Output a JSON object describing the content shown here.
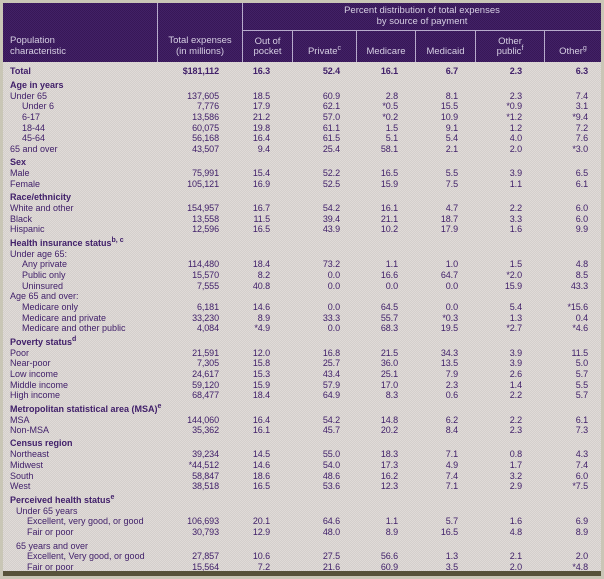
{
  "table": {
    "banner": [
      "Percent distribution of total expenses",
      "by source of payment"
    ],
    "col_headers": {
      "population": "Population characteristic",
      "total_expenses": "Total expenses (in millions)",
      "payment": [
        {
          "label": "Out of pocket",
          "sup": ""
        },
        {
          "label": "Private",
          "sup": "c"
        },
        {
          "label": "Medicare",
          "sup": ""
        },
        {
          "label": "Medicaid",
          "sup": ""
        },
        {
          "label": "Other public",
          "sup": "f"
        },
        {
          "label": "Other",
          "sup": "g"
        }
      ]
    },
    "rows": [
      {
        "t": "total",
        "label": "Total",
        "values": [
          "$181,112",
          "16.3",
          "52.4",
          "16.1",
          "6.7",
          "2.3",
          "6.3"
        ]
      },
      {
        "t": "section",
        "label": "Age in years"
      },
      {
        "t": "data",
        "i": 0,
        "label": "Under 65",
        "values": [
          "137,605",
          "18.5",
          "60.9",
          "2.8",
          "8.1",
          "2.3",
          "7.4"
        ]
      },
      {
        "t": "data",
        "i": 2,
        "label": "Under 6",
        "values": [
          "7,776",
          "17.9",
          "62.1",
          "*0.5",
          "15.5",
          "*0.9",
          "3.1"
        ]
      },
      {
        "t": "data",
        "i": 2,
        "label": "6-17",
        "values": [
          "13,586",
          "21.2",
          "57.0",
          "*0.2",
          "10.9",
          "*1.2",
          "*9.4"
        ]
      },
      {
        "t": "data",
        "i": 2,
        "label": "18-44",
        "values": [
          "60,075",
          "19.8",
          "61.1",
          "1.5",
          "9.1",
          "1.2",
          "7.2"
        ]
      },
      {
        "t": "data",
        "i": 2,
        "label": "45-64",
        "values": [
          "56,168",
          "16.4",
          "61.5",
          "5.1",
          "5.4",
          "4.0",
          "7.6"
        ]
      },
      {
        "t": "data",
        "i": 0,
        "label": "65 and over",
        "values": [
          "43,507",
          "9.4",
          "25.4",
          "58.1",
          "2.1",
          "2.0",
          "*3.0"
        ]
      },
      {
        "t": "section",
        "label": "Sex"
      },
      {
        "t": "data",
        "i": 0,
        "label": "Male",
        "values": [
          "75,991",
          "15.4",
          "52.2",
          "16.5",
          "5.5",
          "3.9",
          "6.5"
        ]
      },
      {
        "t": "data",
        "i": 0,
        "label": "Female",
        "values": [
          "105,121",
          "16.9",
          "52.5",
          "15.9",
          "7.5",
          "1.1",
          "6.1"
        ]
      },
      {
        "t": "section",
        "label": "Race/ethnicity"
      },
      {
        "t": "data",
        "i": 0,
        "label": "White and other",
        "values": [
          "154,957",
          "16.7",
          "54.2",
          "16.1",
          "4.7",
          "2.2",
          "6.0"
        ]
      },
      {
        "t": "data",
        "i": 0,
        "label": "Black",
        "values": [
          "13,558",
          "11.5",
          "39.4",
          "21.1",
          "18.7",
          "3.3",
          "6.0"
        ]
      },
      {
        "t": "data",
        "i": 0,
        "label": "Hispanic",
        "values": [
          "12,596",
          "16.5",
          "43.9",
          "10.2",
          "17.9",
          "1.6",
          "9.9"
        ]
      },
      {
        "t": "section",
        "label": "Health insurance status",
        "sup": "b, c"
      },
      {
        "t": "subheader",
        "i": 0,
        "label": "Under age 65:"
      },
      {
        "t": "data",
        "i": 2,
        "label": "Any private",
        "values": [
          "114,480",
          "18.4",
          "73.2",
          "1.1",
          "1.0",
          "1.5",
          "4.8"
        ]
      },
      {
        "t": "data",
        "i": 2,
        "label": "Public only",
        "values": [
          "15,570",
          "8.2",
          "0.0",
          "16.6",
          "64.7",
          "*2.0",
          "8.5"
        ]
      },
      {
        "t": "data",
        "i": 2,
        "label": "Uninsured",
        "values": [
          "7,555",
          "40.8",
          "0.0",
          "0.0",
          "0.0",
          "15.9",
          "43.3"
        ]
      },
      {
        "t": "subheader",
        "i": 0,
        "label": "Age 65 and over:"
      },
      {
        "t": "data",
        "i": 2,
        "label": "Medicare only",
        "values": [
          "6,181",
          "14.6",
          "0.0",
          "64.5",
          "0.0",
          "5.4",
          "*15.6"
        ]
      },
      {
        "t": "data",
        "i": 2,
        "label": "Medicare and private",
        "values": [
          "33,230",
          "8.9",
          "33.3",
          "55.7",
          "*0.3",
          "1.3",
          "0.4"
        ]
      },
      {
        "t": "data",
        "i": 2,
        "label": "Medicare and other public",
        "values": [
          "4,084",
          "*4.9",
          "0.0",
          "68.3",
          "19.5",
          "*2.7",
          "*4.6"
        ]
      },
      {
        "t": "section",
        "label": "Poverty status",
        "sup": "d"
      },
      {
        "t": "data",
        "i": 0,
        "label": "Poor",
        "values": [
          "21,591",
          "12.0",
          "16.8",
          "21.5",
          "34.3",
          "3.9",
          "11.5"
        ]
      },
      {
        "t": "data",
        "i": 0,
        "label": "Near-poor",
        "values": [
          "7,305",
          "15.8",
          "25.7",
          "36.0",
          "13.5",
          "3.9",
          "5.0"
        ]
      },
      {
        "t": "data",
        "i": 0,
        "label": "Low income",
        "values": [
          "24,617",
          "15.3",
          "43.4",
          "25.1",
          "7.9",
          "2.6",
          "5.7"
        ]
      },
      {
        "t": "data",
        "i": 0,
        "label": "Middle income",
        "values": [
          "59,120",
          "15.9",
          "57.9",
          "17.0",
          "2.3",
          "1.4",
          "5.5"
        ]
      },
      {
        "t": "data",
        "i": 0,
        "label": "High income",
        "values": [
          "68,477",
          "18.4",
          "64.9",
          "8.3",
          "0.6",
          "2.2",
          "5.7"
        ]
      },
      {
        "t": "section",
        "label": "Metropolitan statistical area (MSA)",
        "sup": "e"
      },
      {
        "t": "data",
        "i": 0,
        "label": "MSA",
        "values": [
          "144,060",
          "16.4",
          "54.2",
          "14.8",
          "6.2",
          "2.2",
          "6.1"
        ]
      },
      {
        "t": "data",
        "i": 0,
        "label": "Non-MSA",
        "values": [
          "35,362",
          "16.1",
          "45.7",
          "20.2",
          "8.4",
          "2.3",
          "7.3"
        ]
      },
      {
        "t": "section",
        "label": "Census region"
      },
      {
        "t": "data",
        "i": 0,
        "label": "Northeast",
        "values": [
          "39,234",
          "14.5",
          "55.0",
          "18.3",
          "7.1",
          "0.8",
          "4.3"
        ]
      },
      {
        "t": "data",
        "i": 0,
        "label": "Midwest",
        "values": [
          "*44,512",
          "14.6",
          "54.0",
          "17.3",
          "4.9",
          "1.7",
          "7.4"
        ]
      },
      {
        "t": "data",
        "i": 0,
        "label": "South",
        "values": [
          "58,847",
          "18.6",
          "48.6",
          "16.2",
          "7.4",
          "3.2",
          "6.0"
        ]
      },
      {
        "t": "data",
        "i": 0,
        "label": "West",
        "values": [
          "38,518",
          "16.5",
          "53.6",
          "12.3",
          "7.1",
          "2.9",
          "*7.5"
        ]
      },
      {
        "t": "section",
        "label": "Perceived health status",
        "sup": "e"
      },
      {
        "t": "subheader",
        "i": 1,
        "label": "Under 65 years"
      },
      {
        "t": "data",
        "i": 3,
        "label": "Excellent, very good, or good",
        "values": [
          "106,693",
          "20.1",
          "64.6",
          "1.1",
          "5.7",
          "1.6",
          "6.9"
        ]
      },
      {
        "t": "data",
        "i": 3,
        "label": "Fair or poor",
        "values": [
          "30,793",
          "12.9",
          "48.0",
          "8.9",
          "16.5",
          "4.8",
          "8.9"
        ]
      },
      {
        "t": "subheader",
        "i": 1,
        "gap": true,
        "label": "65 years and over"
      },
      {
        "t": "data",
        "i": 3,
        "label": "Excellent, Very good, or good",
        "values": [
          "27,857",
          "10.6",
          "27.5",
          "56.6",
          "1.3",
          "2.1",
          "2.0"
        ]
      },
      {
        "t": "data",
        "i": 3,
        "label": "Fair or poor",
        "values": [
          "15,564",
          "7.2",
          "21.6",
          "60.9",
          "3.5",
          "2.0",
          "*4.8"
        ]
      }
    ]
  },
  "colors": {
    "header_bg": "#3b1a5d",
    "header_text": "#d6cfe3",
    "body_bg": "#dad5d2",
    "body_text": "#41206a",
    "separator": "#b7abcc",
    "frame": "#c9c6b6",
    "bottom_bar": "#57523a"
  }
}
